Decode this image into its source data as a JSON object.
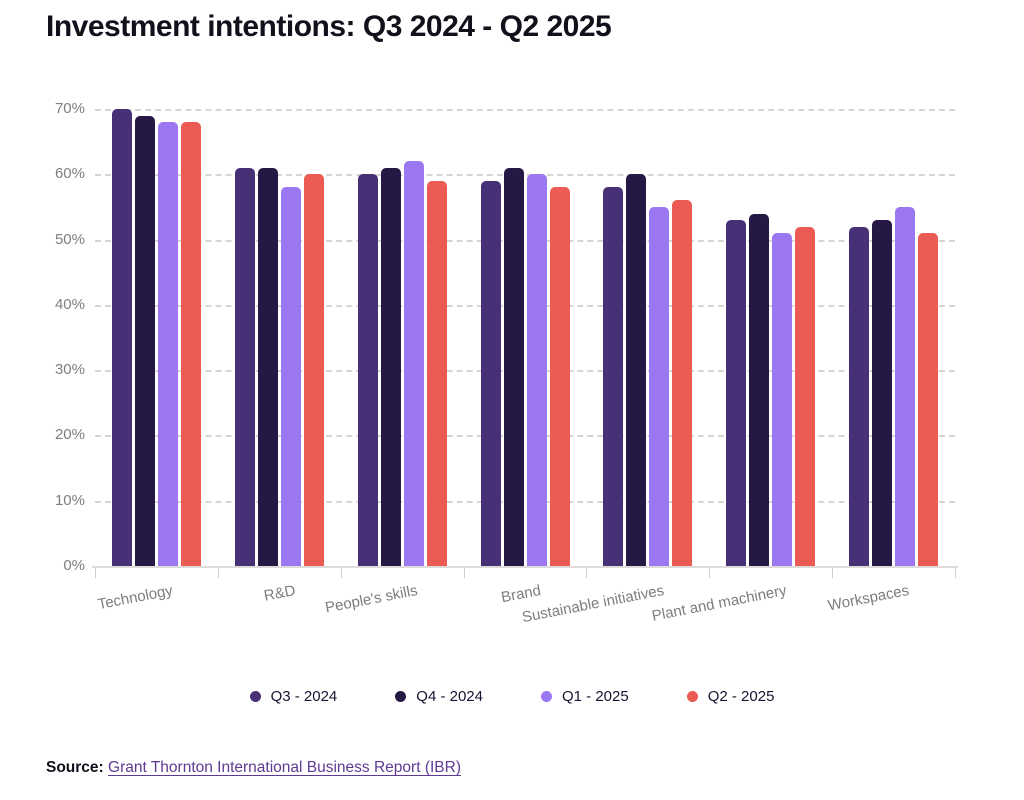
{
  "title": "Investment intentions: Q3 2024 - Q2 2025",
  "chart_data": {
    "type": "bar",
    "title": "Investment intentions: Q3 2024 - Q2 2025",
    "categories": [
      "Technology",
      "R&D",
      "People's skills",
      "Brand",
      "Sustainable initiatives",
      "Plant and machinery",
      "Workspaces"
    ],
    "series": [
      {
        "name": "Q3 - 2024",
        "color": "#483077",
        "values": [
          70,
          61,
          60,
          59,
          58,
          53,
          52
        ]
      },
      {
        "name": "Q4 - 2024",
        "color": "#261844",
        "values": [
          69,
          61,
          61,
          61,
          60,
          54,
          53
        ]
      },
      {
        "name": "Q1 - 2025",
        "color": "#9c77f2",
        "values": [
          68,
          58,
          62,
          60,
          55,
          51,
          55
        ]
      },
      {
        "name": "Q2 - 2025",
        "color": "#ec5b53",
        "values": [
          68,
          60,
          59,
          58,
          56,
          52,
          51
        ]
      }
    ],
    "xlabel": "",
    "ylabel": "",
    "ylim": [
      0,
      70
    ],
    "yticks": [
      0,
      10,
      20,
      30,
      40,
      50,
      60,
      70
    ],
    "ytick_suffix": "%",
    "grid": "horizontal-dashed",
    "legend_position": "bottom"
  },
  "source": {
    "label": "Source:",
    "link_text": "Grant Thornton International Business Report (IBR)"
  },
  "colors": {
    "grid": "#d9d4cf",
    "baseline": "#dedbdb",
    "axis_text": "#7e7e7e",
    "title_text": "#13101b",
    "legend_text": "#191331",
    "link": "#5e3a94"
  }
}
